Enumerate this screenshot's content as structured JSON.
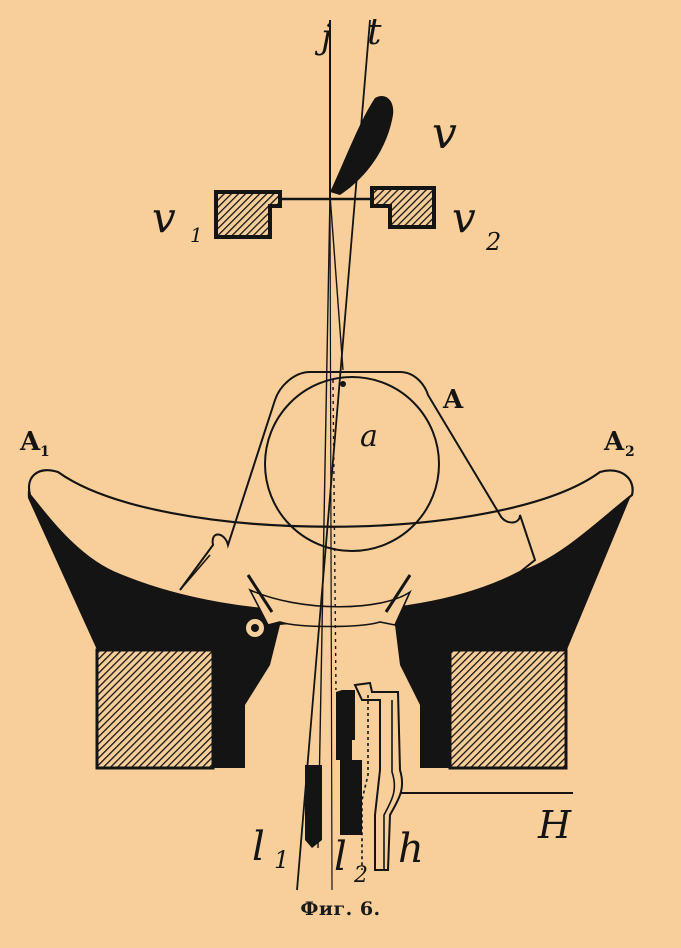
{
  "figure": {
    "caption": "Фиг. 6.",
    "labels": {
      "j": "j",
      "t": "t",
      "v": "v",
      "v1": "v",
      "v1_sub": "1",
      "v2": "v",
      "v2_sub": "2",
      "A": "A",
      "A1": "A",
      "A1_sub": "1",
      "A2": "A",
      "A2_sub": "2",
      "a": "a",
      "H": "H",
      "l1": "l",
      "l1_sub": "1",
      "l2": "l",
      "l2_sub": "2",
      "h": "h"
    },
    "colors": {
      "background": "#f8cf9a",
      "ink": "#141414"
    }
  }
}
